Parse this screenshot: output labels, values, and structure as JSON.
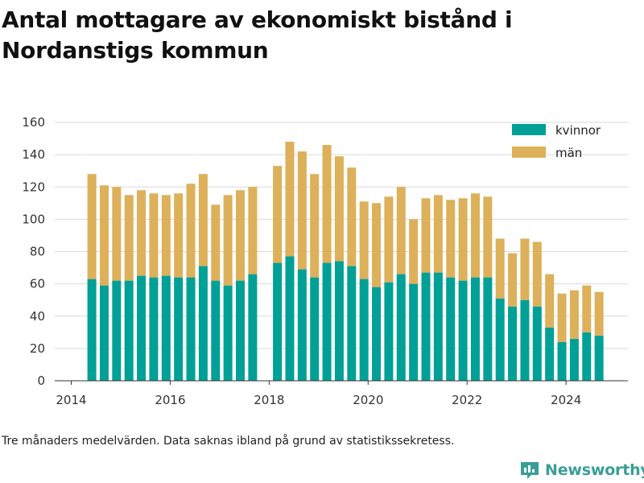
{
  "title": "Antal mottagare av ekonomiskt bistånd i Nordanstigs kommun",
  "footnote": "Tre månaders medelvärden. Data saknas ibland på grund av statistikssekretess.",
  "brand": {
    "name": "Newsworthy",
    "icon": "bar-chart-logo-icon"
  },
  "colors": {
    "kvinnor": "#00a096",
    "man": "#ddb05a",
    "grid": "#d9d9d9",
    "axis": "#333333"
  },
  "chart_data": {
    "type": "bar",
    "stacked": true,
    "grid": true,
    "legend_position": "top-right",
    "ylim": [
      0,
      160
    ],
    "yticks": [
      0,
      20,
      40,
      60,
      80,
      100,
      120,
      140,
      160
    ],
    "xlim": [
      "2013-09",
      "2025-04"
    ],
    "xticks": [
      "2014",
      "2016",
      "2018",
      "2020",
      "2022",
      "2024"
    ],
    "xlabel": "",
    "ylabel": "",
    "categories": [
      "2014-06",
      "2014-09",
      "2014-12",
      "2015-03",
      "2015-06",
      "2015-09",
      "2015-12",
      "2016-03",
      "2016-06",
      "2016-09",
      "2016-12",
      "2017-03",
      "2017-06",
      "2017-09",
      "2018-03",
      "2018-06",
      "2018-09",
      "2018-12",
      "2019-03",
      "2019-06",
      "2019-09",
      "2019-12",
      "2020-03",
      "2020-06",
      "2020-09",
      "2020-12",
      "2021-03",
      "2021-06",
      "2021-09",
      "2021-12",
      "2022-03",
      "2022-06",
      "2022-09",
      "2022-12",
      "2023-03",
      "2023-06",
      "2023-09",
      "2023-12",
      "2024-03",
      "2024-06",
      "2024-09"
    ],
    "series": [
      {
        "name": "kvinnor",
        "values": [
          63,
          59,
          62,
          62,
          65,
          64,
          65,
          64,
          64,
          71,
          62,
          59,
          62,
          66,
          73,
          77,
          69,
          64,
          73,
          74,
          71,
          63,
          58,
          61,
          66,
          60,
          67,
          67,
          64,
          62,
          64,
          64,
          51,
          46,
          50,
          46,
          33,
          24,
          26,
          30,
          28
        ]
      },
      {
        "name": "män",
        "values": [
          65,
          62,
          58,
          53,
          53,
          52,
          50,
          52,
          58,
          57,
          47,
          56,
          56,
          54,
          60,
          71,
          73,
          64,
          73,
          65,
          61,
          48,
          52,
          53,
          54,
          40,
          46,
          48,
          48,
          51,
          52,
          50,
          37,
          33,
          38,
          40,
          33,
          30,
          30,
          29,
          27
        ]
      }
    ]
  }
}
